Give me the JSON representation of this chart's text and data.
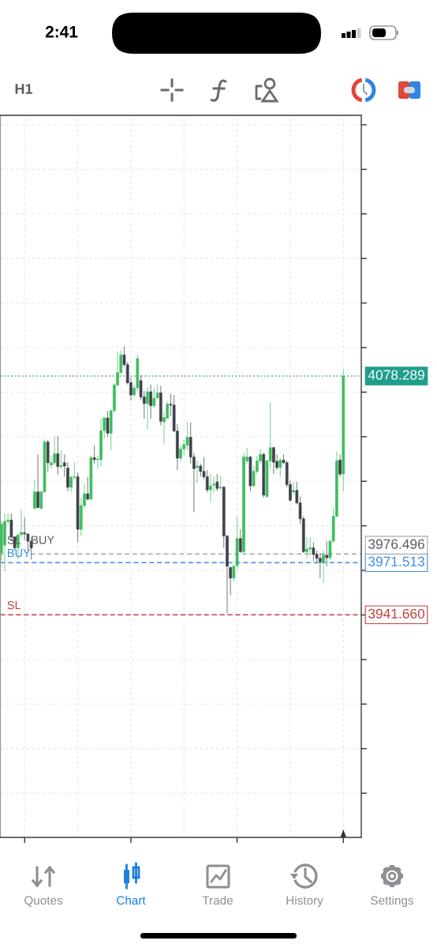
{
  "chart_data": {
    "type": "candlestick",
    "categories": [
      null,
      null,
      null,
      null,
      null,
      null,
      null,
      null,
      null,
      null,
      null,
      null,
      null,
      null,
      null,
      null,
      null,
      null,
      null,
      null,
      null,
      null,
      null,
      null,
      null,
      null,
      null,
      null,
      null,
      null,
      null,
      null,
      null,
      null,
      null,
      null,
      null,
      null,
      null,
      null,
      null,
      null,
      null,
      null,
      null,
      null,
      null,
      null,
      null,
      null,
      null,
      null,
      null,
      null,
      null,
      null,
      null,
      null,
      null,
      null,
      null,
      null,
      null,
      null,
      null,
      null,
      null,
      null,
      null,
      null,
      null,
      null,
      null,
      null,
      null,
      null,
      null,
      null,
      null,
      null,
      null,
      null,
      null,
      null,
      null,
      null,
      null,
      null,
      null,
      null,
      null,
      null,
      null,
      null,
      null,
      null,
      null,
      null,
      null,
      null,
      null,
      null,
      null,
      null
    ],
    "ohlc": [
      [
        3977.0,
        3995.1,
        3972.5,
        3993.6
      ],
      [
        3981.6,
        3999.6,
        3966.5,
        3995.1
      ],
      [
        3995.1,
        3999.6,
        3993.6,
        3995.9
      ],
      [
        3995.9,
        3999.6,
        3983.8,
        3986.1
      ],
      [
        3986.1,
        3986.8,
        3978.5,
        3980.0
      ],
      [
        3980.0,
        3988.3,
        3973.3,
        3987.3
      ],
      [
        3987.6,
        4001.9,
        3986.1,
        3988.8
      ],
      [
        3988.6,
        3997.4,
        3984.6,
        3988.0
      ],
      [
        3987.9,
        3988.3,
        3978.5,
        3983.8
      ],
      [
        3983.8,
        3986.1,
        3973.3,
        3980.0
      ],
      [
        4002.6,
        4019.2,
        4002.4,
        4012.0
      ],
      [
        4012.0,
        4033.5,
        4002.6,
        4003.1
      ],
      [
        4002.6,
        4012.4,
        4002.4,
        4012.0
      ],
      [
        4012.0,
        4041.8,
        4011.7,
        4040.6
      ],
      [
        4040.6,
        4041.8,
        4023.7,
        4028.7
      ],
      [
        4027.5,
        4032.8,
        4025.3,
        4028.7
      ],
      [
        4028.7,
        4043.6,
        4027.1,
        4033.8
      ],
      [
        4033.8,
        4044.1,
        4021.9,
        4026.5
      ],
      [
        4026.5,
        4035.8,
        4025.3,
        4027.1
      ],
      [
        4028.7,
        4033.5,
        4020.7,
        4026.8
      ],
      [
        4025.7,
        4029.0,
        4012.4,
        4014.7
      ],
      [
        4014.7,
        4021.5,
        4011.7,
        4020.4
      ],
      [
        4020.4,
        4029.0,
        4019.5,
        4020.7
      ],
      [
        4020.7,
        4023.0,
        3983.1,
        3990.6
      ],
      [
        3990.6,
        4008.7,
        3986.8,
        4004.2
      ],
      [
        4004.2,
        4017.0,
        4002.6,
        4010.9
      ],
      [
        4010.9,
        4020.7,
        4007.2,
        4007.9
      ],
      [
        4007.9,
        4032.8,
        4007.2,
        4031.6
      ],
      [
        4031.6,
        4038.8,
        4028.3,
        4030.5
      ],
      [
        4030.5,
        4032.8,
        4025.3,
        4030.8
      ],
      [
        4030.5,
        4053.9,
        4026.8,
        4047.1
      ],
      [
        4047.1,
        4054.6,
        4042.6,
        4054.3
      ],
      [
        4054.3,
        4058.4,
        4043.3,
        4045.6
      ],
      [
        4045.6,
        4059.2,
        4035.8,
        4058.4
      ],
      [
        4058.4,
        4074.2,
        4057.7,
        4073.2
      ],
      [
        4073.2,
        4092.3,
        4072.7,
        4080.3
      ],
      [
        4080.3,
        4093.1,
        4079.8,
        4090.4
      ],
      [
        4090.4,
        4095.3,
        4084.0,
        4084.8
      ],
      [
        4084.8,
        4086.3,
        4073.5,
        4074.5
      ],
      [
        4074.5,
        4077.3,
        4064.4,
        4067.5
      ],
      [
        4067.5,
        4073.5,
        4066.7,
        4071.5
      ],
      [
        4071.5,
        4090.1,
        4069.7,
        4088.3
      ],
      [
        4075.7,
        4078.8,
        4064.4,
        4066.3
      ],
      [
        4066.3,
        4069.7,
        4053.9,
        4062.6
      ],
      [
        4062.6,
        4072.0,
        4047.9,
        4069.3
      ],
      [
        4069.3,
        4073.5,
        4053.9,
        4061.4
      ],
      [
        4061.4,
        4071.7,
        4059.9,
        4065.6
      ],
      [
        4065.9,
        4073.2,
        4065.2,
        4068.7
      ],
      [
        4068.7,
        4072.7,
        4050.1,
        4052.4
      ],
      [
        4052.1,
        4057.7,
        4039.6,
        4054.6
      ],
      [
        4054.2,
        4063.7,
        4053.9,
        4062.2
      ],
      [
        4062.2,
        4068.2,
        4055.4,
        4061.7
      ],
      [
        4061.7,
        4067.5,
        4046.4,
        4046.8
      ],
      [
        4046.8,
        4050.9,
        4024.5,
        4031.3
      ],
      [
        4031.3,
        4038.8,
        4029.8,
        4036.6
      ],
      [
        4036.6,
        4041.8,
        4032.8,
        4039.1
      ],
      [
        4038.8,
        4052.1,
        4035.8,
        4043.3
      ],
      [
        4043.3,
        4051.6,
        4028.3,
        4032.0
      ],
      [
        4032.0,
        4034.3,
        4000.4,
        4025.3
      ],
      [
        4026.0,
        4029.8,
        4017.0,
        4026.8
      ],
      [
        4026.8,
        4028.3,
        4020.7,
        4023.7
      ],
      [
        4023.7,
        4032.0,
        4019.2,
        4020.7
      ],
      [
        4020.7,
        4024.5,
        4011.7,
        4013.2
      ],
      [
        4013.2,
        4022.2,
        4005.7,
        4015.5
      ],
      [
        4015.9,
        4020.7,
        4011.7,
        4016.5
      ],
      [
        4017.7,
        4022.2,
        4012.4,
        4014.0
      ],
      [
        4014.3,
        4021.5,
        4013.2,
        4014.7
      ],
      [
        4014.7,
        4015.5,
        3980.0,
        3986.8
      ],
      [
        3986.8,
        3987.3,
        3942.4,
        3969.5
      ],
      [
        3968.7,
        3969.5,
        3952.9,
        3962.7
      ],
      [
        3962.7,
        3970.2,
        3960.5,
        3969.5
      ],
      [
        3969.8,
        3998.1,
        3968.0,
        3985.3
      ],
      [
        3985.3,
        3990.6,
        3977.0,
        3977.8
      ],
      [
        3977.8,
        4034.3,
        3977.0,
        4032.0
      ],
      [
        4029.8,
        4037.3,
        4028.3,
        4032.0
      ],
      [
        4032.0,
        4032.8,
        4012.4,
        4015.5
      ],
      [
        4015.5,
        4026.8,
        4014.7,
        4023.7
      ],
      [
        4023.7,
        4032.8,
        4022.2,
        4029.8
      ],
      [
        4029.8,
        4036.6,
        4028.3,
        4033.5
      ],
      [
        4033.5,
        4034.3,
        4008.7,
        4010.2
      ],
      [
        4009.4,
        4030.5,
        4008.7,
        4029.8
      ],
      [
        4029.8,
        4063.2,
        4025.3,
        4037.3
      ],
      [
        4037.3,
        4038.1,
        4022.2,
        4029.0
      ],
      [
        4029.5,
        4033.5,
        4024.5,
        4026.0
      ],
      [
        4026.0,
        4031.3,
        4020.7,
        4030.2
      ],
      [
        4030.2,
        4033.5,
        4028.3,
        4028.7
      ],
      [
        4028.7,
        4029.8,
        4014.7,
        4016.2
      ],
      [
        4016.2,
        4018.5,
        4006.4,
        4007.2
      ],
      [
        4012.0,
        4017.7,
        4010.2,
        4012.9
      ],
      [
        4012.9,
        4017.7,
        4004.9,
        4005.7
      ],
      [
        4005.7,
        4009.4,
        3993.6,
        3996.6
      ],
      [
        3996.6,
        3998.1,
        3977.0,
        3977.8
      ],
      [
        3977.8,
        3986.1,
        3974.0,
        3979.3
      ],
      [
        3979.3,
        3986.1,
        3975.5,
        3980.0
      ],
      [
        3980.0,
        3983.1,
        3972.5,
        3976.3
      ],
      [
        3976.3,
        3978.5,
        3971.0,
        3974.0
      ],
      [
        3974.0,
        3977.0,
        3962.7,
        3971.8
      ],
      [
        3971.8,
        3978.5,
        3959.7,
        3975.8
      ],
      [
        3975.8,
        3983.8,
        3969.5,
        3974.3
      ],
      [
        3974.3,
        3984.6,
        3973.3,
        3983.8
      ],
      [
        3983.8,
        4002.6,
        3983.1,
        3998.1
      ],
      [
        3998.1,
        4035.1,
        3997.4,
        4029.8
      ],
      [
        4030.2,
        4033.5,
        4020.7,
        4022.2
      ],
      [
        4022.2,
        4082.5,
        4012.4,
        4078.3
      ]
    ],
    "colors": [
      "#3dbd5d",
      "#3dbd5d",
      "#3dbd5d",
      "#3d414c",
      "#3d414c",
      "#3dbd5d",
      "#3dbd5d",
      "#3d414c",
      "#3d414c",
      "#3d414c",
      "#3dbd5d",
      "#3d414c",
      "#3dbd5d",
      "#3dbd5d",
      "#3d414c",
      "#3dbd5d",
      "#3dbd5d",
      "#3d414c",
      "#3dbd5d",
      "#3d414c",
      "#3d414c",
      "#3dbd5d",
      "#3dbd5d",
      "#3d414c",
      "#3dbd5d",
      "#3dbd5d",
      "#3d414c",
      "#3dbd5d",
      "#3d414c",
      "#3dbd5d",
      "#3dbd5d",
      "#3dbd5d",
      "#3d414c",
      "#3dbd5d",
      "#3dbd5d",
      "#3dbd5d",
      "#3dbd5d",
      "#3d414c",
      "#3d414c",
      "#3d414c",
      "#3dbd5d",
      "#3dbd5d",
      "#3d414c",
      "#3d414c",
      "#3dbd5d",
      "#3d414c",
      "#3dbd5d",
      "#3dbd5d",
      "#3d414c",
      "#3dbd5d",
      "#3dbd5d",
      "#3d414c",
      "#3d414c",
      "#3d414c",
      "#3dbd5d",
      "#3dbd5d",
      "#3dbd5d",
      "#3d414c",
      "#3d414c",
      "#3dbd5d",
      "#3d414c",
      "#3d414c",
      "#3d414c",
      "#3dbd5d",
      "#3dbd5d",
      "#3d414c",
      "#3dbd5d",
      "#3d414c",
      "#3d414c",
      "#3d414c",
      "#3dbd5d",
      "#3dbd5d",
      "#3d414c",
      "#3dbd5d",
      "#3dbd5d",
      "#3d414c",
      "#3dbd5d",
      "#3dbd5d",
      "#3dbd5d",
      "#3d414c",
      "#3dbd5d",
      "#3dbd5d",
      "#3d414c",
      "#3d414c",
      "#3dbd5d",
      "#3d414c",
      "#3d414c",
      "#3d414c",
      "#3dbd5d",
      "#3d414c",
      "#3d414c",
      "#3d414c",
      "#3dbd5d",
      "#3dbd5d",
      "#3d414c",
      "#3d414c",
      "#3d414c",
      "#3dbd5d",
      "#3d414c",
      "#3dbd5d",
      "#3dbd5d",
      "#3dbd5d",
      "#3d414c",
      "#3dbd5d"
    ],
    "ylim": [
      3814.3,
      4227.5
    ],
    "yticks": [
      {
        "value": 3839.6,
        "label": null
      },
      {
        "value": 3865.1,
        "label": null
      },
      {
        "value": 3890.6,
        "label": null
      },
      {
        "value": 3916.1,
        "label": null
      },
      {
        "value": 3941.6,
        "label": null
      },
      {
        "value": 3967.1,
        "label": null
      },
      {
        "value": 3992.6,
        "label": null
      },
      {
        "value": 4018.1,
        "label": null
      },
      {
        "value": 4043.6,
        "label": null
      },
      {
        "value": 4069.1,
        "label": null
      },
      {
        "value": 4094.6,
        "label": null
      },
      {
        "value": 4120.1,
        "label": null
      },
      {
        "value": 4145.6,
        "label": null
      },
      {
        "value": 4171.1,
        "label": null
      },
      {
        "value": 4196.6,
        "label": null
      },
      {
        "value": 4222.1,
        "label": null
      }
    ],
    "grid": true,
    "ref_lines": [
      {
        "axis": "y",
        "value": 4078.289,
        "label": "4078.289",
        "color": "#1f9e8c",
        "line_style": "dotted"
      },
      {
        "axis": "y",
        "value": 3976.496,
        "label": "3976.496",
        "color": "#a3a8b0",
        "line_style": "dashed"
      },
      {
        "axis": "y",
        "value": 3971.513,
        "label": "3971.513",
        "color": "#3a8ee6",
        "line_style": "dashed"
      },
      {
        "axis": "y",
        "value": 3941.66,
        "label": "3941.660",
        "color": "#c2413a",
        "line_style": "dashed"
      }
    ],
    "annotations": [
      "2:41",
      "H1",
      "Quotes",
      "Chart",
      "Trade",
      "History",
      "Settings",
      {
        "text": "SL",
        "y": 3976.496
      },
      {
        "text": "BUY",
        "y": 3976.496
      },
      {
        "text": "BUY",
        "y": 3971.513
      },
      {
        "text": "SL",
        "y": 3941.66
      }
    ]
  }
}
